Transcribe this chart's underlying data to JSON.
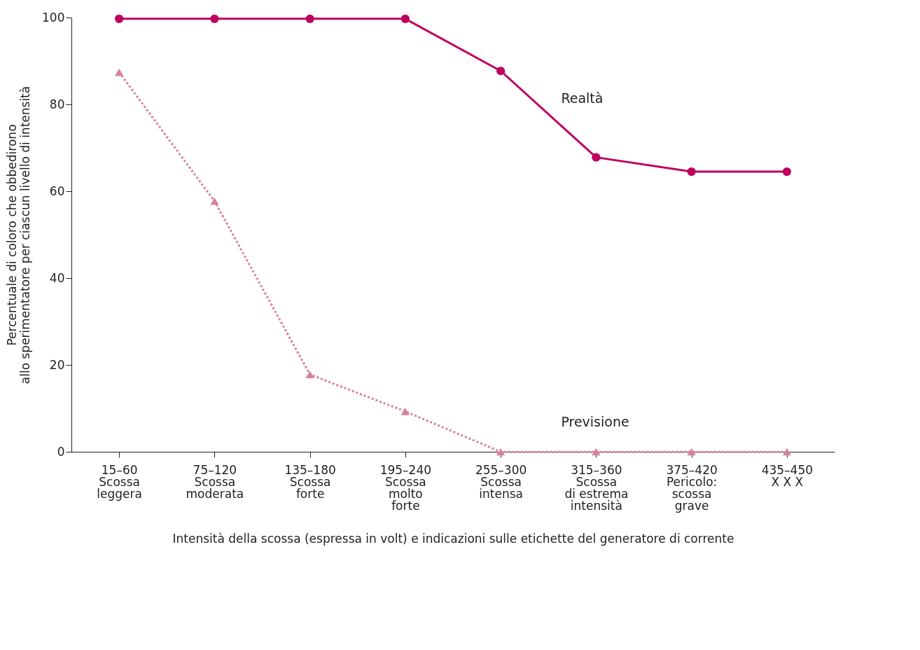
{
  "chart_data": {
    "type": "line",
    "categories": [
      "15–60\n\nScossa\nleggera",
      "75–120\n\nScossa\nmoderata",
      "135–180\n\nScossa\nforte",
      "195–240\n\nScossa\nmolto\nforte",
      "255–300\n\nScossa\nintensa",
      "315–360\n\nScossa\ndi estrema\nintensità",
      "375–420\n\nPericolo:\nscossa\ngrave",
      "435–450\n\nX X X"
    ],
    "series": [
      {
        "name": "Realtà",
        "color": "#c0005f",
        "marker": "circle",
        "line_style": "solid",
        "values": [
          99.7,
          99.7,
          99.7,
          99.7,
          87.7,
          67.8,
          64.5,
          64.5
        ]
      },
      {
        "name": "Previsione",
        "color": "#d9809f",
        "marker": "triangle",
        "line_style": "dotted",
        "values": [
          87.4,
          57.7,
          17.8,
          9.3,
          0,
          0,
          0,
          0
        ]
      }
    ],
    "xlabel": "Intensità della scossa (espressa in volt) e indicazioni sulle etichette del generatore di corrente",
    "ylabel": "Percentuale di coloro che obbedirono\nallo sperimentatore per ciascun livello di intensità",
    "ylim": [
      0,
      100
    ],
    "yticks": [
      0,
      20,
      40,
      60,
      80,
      100
    ],
    "grid": false,
    "legend": false
  }
}
